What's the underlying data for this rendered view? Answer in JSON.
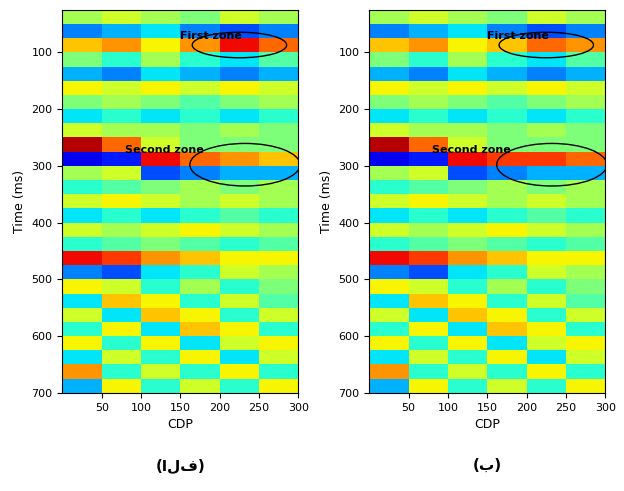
{
  "chart_data": [
    {
      "type": "heatmap",
      "panel_label": "(الف)",
      "x_label": "CDP",
      "y_label": "Time (ms)",
      "xlim": [
        0,
        300
      ],
      "xticks": [
        50,
        100,
        150,
        200,
        250,
        300
      ],
      "ylim": [
        700,
        25
      ],
      "yticks": [
        100,
        200,
        300,
        400,
        500,
        600,
        700
      ],
      "value_range": [
        -1,
        1
      ],
      "x_edges": [
        0,
        50,
        100,
        150,
        200,
        250,
        300
      ],
      "y_edges": [
        25,
        50,
        75,
        100,
        125,
        150,
        175,
        200,
        225,
        250,
        275,
        300,
        325,
        350,
        375,
        400,
        425,
        450,
        475,
        500,
        525,
        550,
        575,
        600,
        625,
        650,
        675,
        700
      ],
      "cells": [
        [
          0.1,
          0.2,
          0.1,
          0.0,
          0.2,
          0.1
        ],
        [
          -0.5,
          -0.4,
          -0.3,
          -0.5,
          -0.6,
          -0.5
        ],
        [
          0.4,
          0.5,
          0.3,
          0.5,
          0.8,
          0.6
        ],
        [
          0.0,
          -0.2,
          0.1,
          -0.2,
          -0.3,
          -0.1
        ],
        [
          -0.4,
          -0.5,
          -0.3,
          -0.4,
          -0.5,
          -0.4
        ],
        [
          0.3,
          0.2,
          0.3,
          0.2,
          0.3,
          0.2
        ],
        [
          0.0,
          0.1,
          0.0,
          -0.1,
          0.0,
          0.1
        ],
        [
          -0.3,
          -0.2,
          -0.3,
          -0.2,
          -0.3,
          -0.2
        ],
        [
          0.2,
          0.1,
          0.1,
          0.0,
          0.1,
          0.0
        ],
        [
          0.9,
          0.6,
          0.2,
          0.0,
          0.0,
          0.0
        ],
        [
          -0.8,
          -0.7,
          0.8,
          0.6,
          0.5,
          0.4
        ],
        [
          0.1,
          0.2,
          -0.6,
          -0.5,
          -0.4,
          -0.4
        ],
        [
          -0.2,
          -0.1,
          0.0,
          0.1,
          0.0,
          0.1
        ],
        [
          0.2,
          0.3,
          0.2,
          0.1,
          0.2,
          0.1
        ],
        [
          -0.3,
          -0.2,
          -0.3,
          -0.2,
          -0.1,
          -0.2
        ],
        [
          0.2,
          0.1,
          0.2,
          0.3,
          0.2,
          0.1
        ],
        [
          -0.2,
          -0.1,
          0.0,
          -0.1,
          -0.2,
          -0.1
        ],
        [
          0.8,
          0.7,
          0.5,
          0.4,
          0.3,
          0.3
        ],
        [
          -0.5,
          -0.6,
          -0.3,
          -0.2,
          0.2,
          0.1
        ],
        [
          0.3,
          0.2,
          -0.2,
          0.1,
          -0.2,
          0.0
        ],
        [
          -0.3,
          0.4,
          0.3,
          -0.2,
          0.2,
          -0.1
        ],
        [
          0.2,
          -0.3,
          0.4,
          0.3,
          -0.2,
          0.2
        ],
        [
          -0.2,
          0.3,
          -0.3,
          0.4,
          0.3,
          -0.2
        ],
        [
          0.3,
          -0.2,
          0.3,
          -0.3,
          0.2,
          0.3
        ],
        [
          -0.3,
          0.2,
          -0.2,
          0.3,
          -0.3,
          0.2
        ],
        [
          0.5,
          -0.2,
          0.2,
          -0.2,
          0.3,
          -0.2
        ],
        [
          -0.4,
          0.3,
          -0.2,
          0.2,
          -0.2,
          0.3
        ]
      ],
      "annotations": [
        {
          "text": "First zone",
          "x": 150,
          "y": 72,
          "ellipse": {
            "x": 225,
            "y": 87,
            "width": 120,
            "height": 45
          }
        },
        {
          "text": "Second zone",
          "x": 80,
          "y": 272,
          "ellipse": {
            "x": 232,
            "y": 298,
            "width": 140,
            "height": 75
          }
        }
      ]
    },
    {
      "type": "heatmap",
      "panel_label": "(ب)",
      "x_label": "CDP",
      "y_label": "Time (ms)",
      "xlim": [
        0,
        300
      ],
      "xticks": [
        50,
        100,
        150,
        200,
        250,
        300
      ],
      "ylim": [
        700,
        25
      ],
      "yticks": [
        100,
        200,
        300,
        400,
        500,
        600,
        700
      ],
      "value_range": [
        -1,
        1
      ],
      "x_edges": [
        0,
        50,
        100,
        150,
        200,
        250,
        300
      ],
      "y_edges": [
        25,
        50,
        75,
        100,
        125,
        150,
        175,
        200,
        225,
        250,
        275,
        300,
        325,
        350,
        375,
        400,
        425,
        450,
        475,
        500,
        525,
        550,
        575,
        600,
        625,
        650,
        675,
        700
      ],
      "cells": [
        [
          0.1,
          0.2,
          0.1,
          0.0,
          0.2,
          0.1
        ],
        [
          -0.5,
          -0.4,
          -0.3,
          -0.5,
          -0.6,
          -0.5
        ],
        [
          0.4,
          0.5,
          0.3,
          0.4,
          0.6,
          0.5
        ],
        [
          0.0,
          -0.2,
          0.1,
          -0.2,
          -0.3,
          -0.1
        ],
        [
          -0.4,
          -0.5,
          -0.3,
          -0.4,
          -0.5,
          -0.4
        ],
        [
          0.3,
          0.2,
          0.3,
          0.2,
          0.3,
          0.2
        ],
        [
          0.0,
          0.1,
          0.0,
          -0.1,
          0.0,
          0.1
        ],
        [
          -0.3,
          -0.2,
          -0.3,
          -0.2,
          -0.3,
          -0.2
        ],
        [
          0.2,
          0.1,
          0.1,
          0.0,
          0.1,
          0.0
        ],
        [
          0.9,
          0.6,
          0.2,
          0.0,
          0.0,
          0.0
        ],
        [
          -0.8,
          -0.7,
          0.8,
          0.7,
          0.7,
          0.6
        ],
        [
          0.1,
          0.2,
          -0.6,
          -0.5,
          -0.4,
          -0.4
        ],
        [
          -0.2,
          -0.1,
          0.0,
          0.1,
          0.0,
          0.1
        ],
        [
          0.2,
          0.3,
          0.2,
          0.1,
          0.2,
          0.1
        ],
        [
          -0.3,
          -0.2,
          -0.3,
          -0.2,
          -0.1,
          -0.2
        ],
        [
          0.2,
          0.1,
          0.2,
          0.3,
          0.2,
          0.1
        ],
        [
          -0.2,
          -0.1,
          0.0,
          -0.1,
          -0.2,
          -0.1
        ],
        [
          0.8,
          0.7,
          0.5,
          0.4,
          0.3,
          0.3
        ],
        [
          -0.5,
          -0.6,
          -0.3,
          -0.2,
          0.2,
          0.1
        ],
        [
          0.3,
          0.2,
          -0.2,
          0.1,
          -0.2,
          0.0
        ],
        [
          -0.3,
          0.4,
          0.3,
          -0.2,
          0.2,
          -0.1
        ],
        [
          0.2,
          -0.3,
          0.4,
          0.3,
          -0.2,
          0.2
        ],
        [
          -0.2,
          0.3,
          -0.3,
          0.4,
          0.3,
          -0.2
        ],
        [
          0.3,
          -0.2,
          0.3,
          -0.3,
          0.2,
          0.3
        ],
        [
          -0.3,
          0.2,
          -0.2,
          0.3,
          -0.3,
          0.2
        ],
        [
          0.5,
          -0.2,
          0.2,
          -0.2,
          0.3,
          -0.2
        ],
        [
          -0.4,
          0.3,
          -0.2,
          0.2,
          -0.2,
          0.3
        ]
      ],
      "annotations": [
        {
          "text": "First zone",
          "x": 150,
          "y": 72,
          "ellipse": {
            "x": 225,
            "y": 87,
            "width": 120,
            "height": 45
          }
        },
        {
          "text": "Second zone",
          "x": 80,
          "y": 272,
          "ellipse": {
            "x": 232,
            "y": 298,
            "width": 140,
            "height": 75
          }
        }
      ]
    }
  ]
}
